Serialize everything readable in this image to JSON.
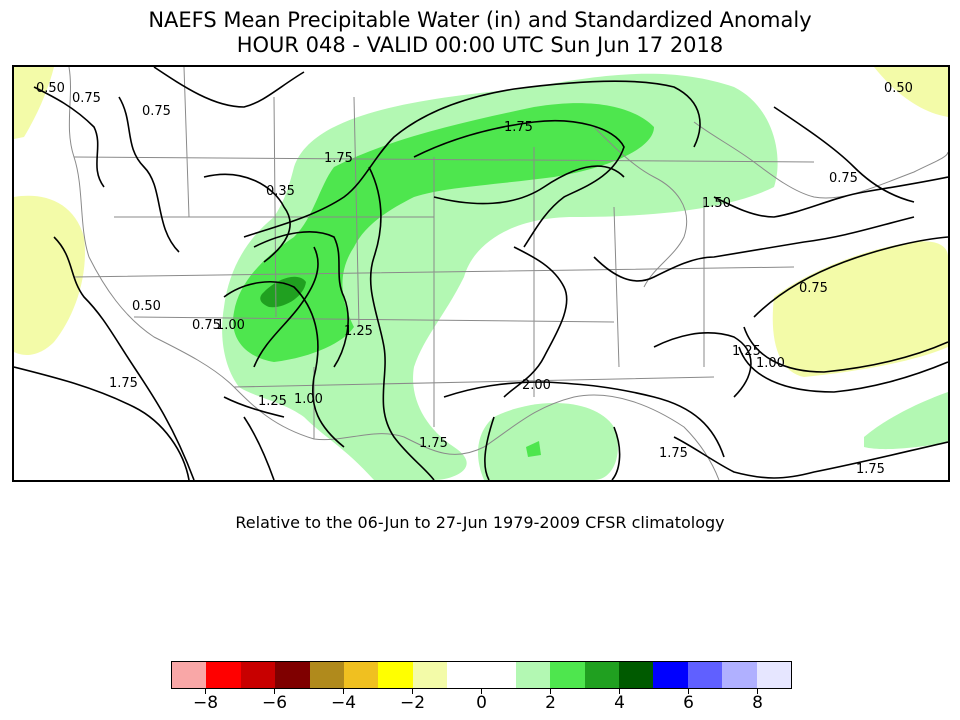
{
  "title": {
    "line1": "NAEFS Mean Precipitable Water (in) and Standardized Anomaly",
    "line2": "HOUR 048 - VALID 00:00 UTC Sun Jun 17 2018"
  },
  "caption": "Relative to the 06-Jun to 27-Jun 1979-2009 CFSR climatology",
  "contour_labels": [
    "0.50",
    "0.75",
    "0.75",
    "0.35",
    "0.50",
    "0.75",
    "1.00",
    "1.25",
    "1.00",
    "1.25",
    "1.75",
    "1.50",
    "1.75",
    "2.00",
    "1.75",
    "1.75",
    "0.50",
    "0.75",
    "0.75",
    "1.25",
    "1.00",
    "1.75",
    "1.75"
  ],
  "colorbar": {
    "colors": [
      "#f9a7a7",
      "#ff0000",
      "#c80000",
      "#7f0000",
      "#b08a1c",
      "#f0c020",
      "#ffff00",
      "#f3fba8",
      "#ffffff",
      "#ffffff",
      "#b3f8b3",
      "#4ee64e",
      "#20a020",
      "#005a00",
      "#0000ff",
      "#6060ff",
      "#b0b0ff",
      "#e6e6ff"
    ],
    "tick_labels": [
      "−8",
      "−6",
      "−4",
      "−2",
      "0",
      "2",
      "4",
      "6",
      "8"
    ],
    "tick_values": [
      -8,
      -6,
      -4,
      -2,
      0,
      2,
      4,
      6,
      8
    ],
    "min": -9,
    "max": 9
  }
}
